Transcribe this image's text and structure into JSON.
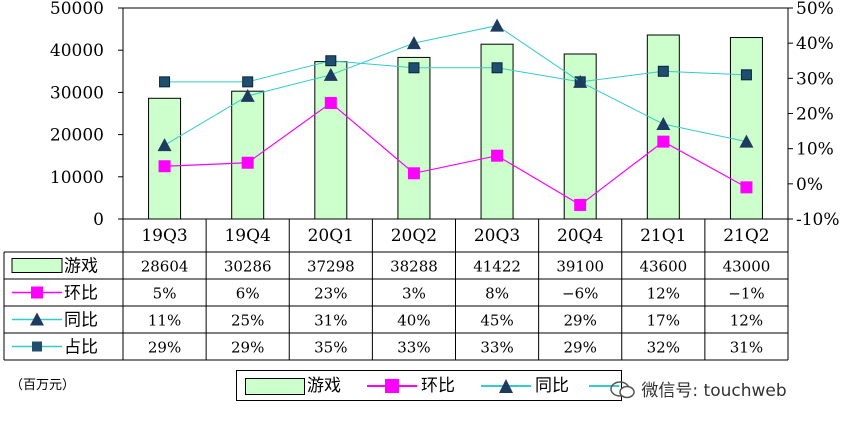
{
  "chart_data": {
    "type": "bar",
    "categories": [
      "19Q3",
      "19Q4",
      "20Q1",
      "20Q2",
      "20Q3",
      "20Q4",
      "21Q1",
      "21Q2"
    ],
    "left_axis": {
      "ylim": [
        0,
        50000
      ],
      "ticks": [
        "0",
        "10000",
        "20000",
        "30000",
        "40000",
        "50000"
      ]
    },
    "right_axis": {
      "ylim": [
        -10,
        50
      ],
      "ticks": [
        "-10%",
        "0%",
        "10%",
        "20%",
        "30%",
        "40%",
        "50%"
      ]
    },
    "series": [
      {
        "name": "游戏",
        "type": "bar",
        "axis": "left",
        "values": [
          28604,
          30286,
          37298,
          38288,
          41422,
          39100,
          43600,
          43000
        ],
        "row_text": [
          "28604",
          "30286",
          "37298",
          "38288",
          "41422",
          "39100",
          "43600",
          "43000"
        ],
        "color": "#ccffcc"
      },
      {
        "name": "环比",
        "type": "line",
        "axis": "right",
        "values": [
          5,
          6,
          23,
          3,
          8,
          -6,
          12,
          -1
        ],
        "row_text": [
          "5%",
          "6%",
          "23%",
          "3%",
          "8%",
          "−6%",
          "12%",
          "−1%"
        ],
        "color": "#ff00ff",
        "marker": "square"
      },
      {
        "name": "同比",
        "type": "line",
        "axis": "right",
        "values": [
          11,
          25,
          31,
          40,
          45,
          29,
          17,
          12
        ],
        "row_text": [
          "11%",
          "25%",
          "31%",
          "40%",
          "45%",
          "29%",
          "17%",
          "12%"
        ],
        "color": "#33cccc",
        "marker": "triangle"
      },
      {
        "name": "占比",
        "type": "line",
        "axis": "right",
        "values": [
          29,
          29,
          35,
          33,
          33,
          29,
          32,
          31
        ],
        "row_text": [
          "29%",
          "29%",
          "35%",
          "33%",
          "33%",
          "29%",
          "32%",
          "31%"
        ],
        "color": "#33cccc",
        "marker": "square-dark"
      }
    ],
    "legend_labels": [
      "游戏",
      "环比",
      "同比"
    ],
    "unit": "（百万元）"
  },
  "watermark": "微信号: touchweb"
}
